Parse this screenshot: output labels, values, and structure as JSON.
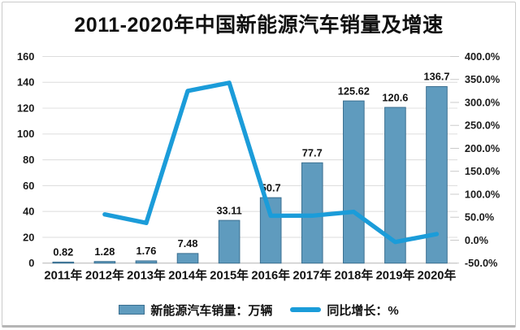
{
  "title": "2011-2020年中国新能源汽车销量及增速",
  "colors": {
    "bar_fill": "#5f9bbe",
    "bar_border": "#3b6f90",
    "line": "#1b9cd9",
    "grid": "#dcdcdc",
    "axis_line": "#b3b3b3",
    "tick": "#c9c9c9",
    "text": "#1a1a1a"
  },
  "chart_data": {
    "type": "combo-bar-line",
    "title": "2011-2020年中国新能源汽车销量及增速",
    "categories": [
      "2011年",
      "2012年",
      "2013年",
      "2014年",
      "2015年",
      "2016年",
      "2017年",
      "2018年",
      "2019年",
      "2020年"
    ],
    "series": [
      {
        "name": "新能源汽车销量：万辆",
        "type": "bar",
        "axis": "left",
        "values": [
          0.82,
          1.28,
          1.76,
          7.48,
          33.11,
          50.7,
          77.7,
          125.62,
          120.6,
          136.7
        ],
        "data_labels": [
          "0.82",
          "1.28",
          "1.76",
          "7.48",
          "33.11",
          "50.7",
          "77.7",
          "125.62",
          "120.6",
          "136.7"
        ]
      },
      {
        "name": "同比增长：%",
        "type": "line",
        "axis": "right",
        "values": [
          null,
          56.1,
          37.5,
          325.0,
          342.7,
          53.1,
          53.3,
          61.7,
          -4.0,
          13.3
        ]
      }
    ],
    "left_axis": {
      "min": 0,
      "max": 160,
      "step": 20,
      "tick_labels": [
        "0",
        "20",
        "40",
        "60",
        "80",
        "100",
        "120",
        "140",
        "160"
      ]
    },
    "right_axis": {
      "min": -50,
      "max": 400,
      "step": 50,
      "tick_labels": [
        "-50.0%",
        "0.0%",
        "50.0%",
        "100.0%",
        "150.0%",
        "200.0%",
        "250.0%",
        "300.0%",
        "350.0%",
        "400.0%"
      ]
    },
    "legend_position": "bottom",
    "grid": true
  }
}
